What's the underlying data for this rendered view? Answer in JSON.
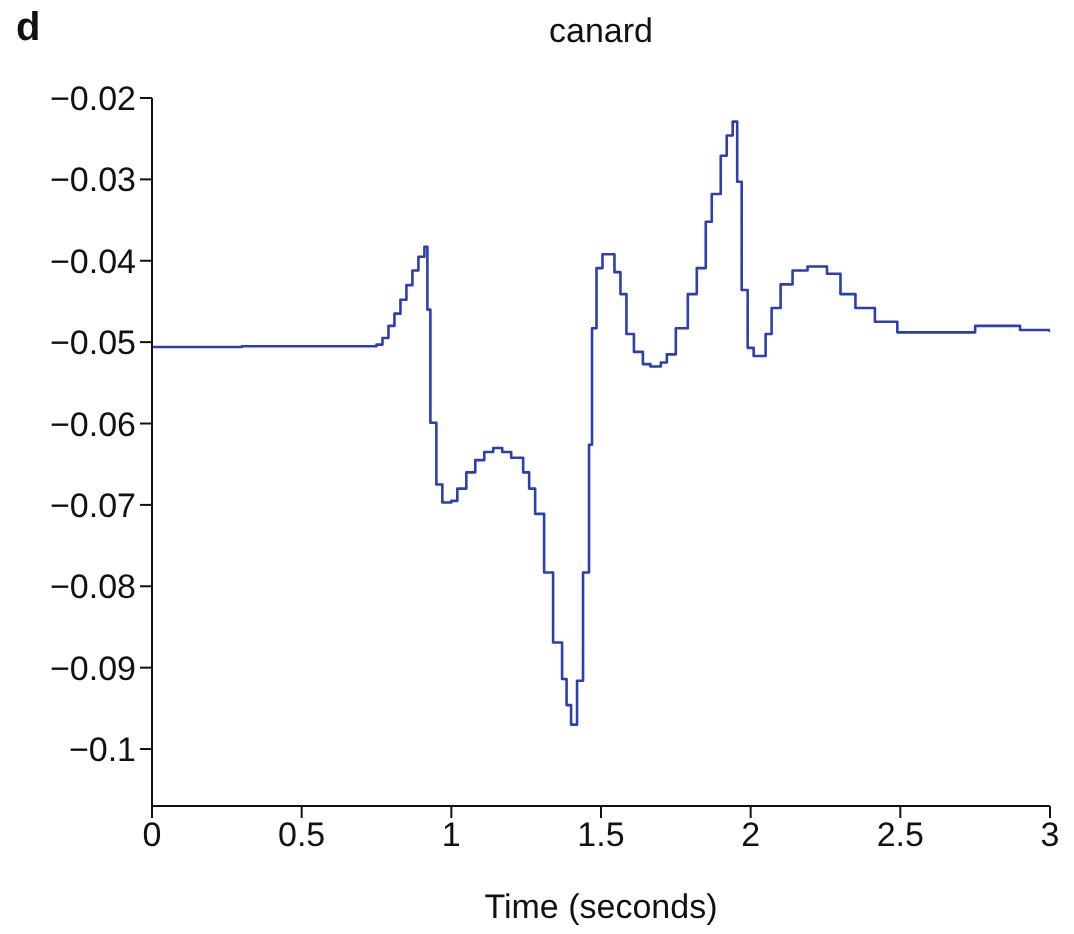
{
  "chart_data": {
    "type": "step",
    "title": "canard",
    "xlabel": "Time (seconds)",
    "annotations": [
      "d"
    ],
    "x": [
      0,
      0.3,
      0.75,
      0.77,
      0.79,
      0.81,
      0.83,
      0.85,
      0.87,
      0.89,
      0.91,
      0.92,
      0.93,
      0.95,
      0.97,
      1.0,
      1.02,
      1.05,
      1.08,
      1.11,
      1.14,
      1.17,
      1.2,
      1.24,
      1.26,
      1.28,
      1.31,
      1.34,
      1.37,
      1.385,
      1.4,
      1.42,
      1.44,
      1.46,
      1.47,
      1.485,
      1.505,
      1.545,
      1.565,
      1.585,
      1.61,
      1.64,
      1.665,
      1.7,
      1.72,
      1.75,
      1.79,
      1.82,
      1.85,
      1.87,
      1.9,
      1.92,
      1.94,
      1.955,
      1.97,
      1.99,
      2.01,
      2.05,
      2.07,
      2.1,
      2.14,
      2.19,
      2.255,
      2.3,
      2.35,
      2.415,
      2.49,
      2.655,
      2.75,
      2.9,
      3.0
    ],
    "series": [
      {
        "color": "#2b3fb0",
        "values": [
          -0.0506,
          -0.0505,
          -0.0503,
          -0.0495,
          -0.048,
          -0.0465,
          -0.0448,
          -0.043,
          -0.0412,
          -0.0395,
          -0.0383,
          -0.046,
          -0.0599,
          -0.0675,
          -0.0697,
          -0.0695,
          -0.068,
          -0.066,
          -0.0645,
          -0.0635,
          -0.063,
          -0.0635,
          -0.0642,
          -0.066,
          -0.068,
          -0.0711,
          -0.0783,
          -0.0869,
          -0.0914,
          -0.0946,
          -0.097,
          -0.0916,
          -0.0783,
          -0.0626,
          -0.0483,
          -0.0409,
          -0.0392,
          -0.0414,
          -0.0441,
          -0.049,
          -0.0512,
          -0.0527,
          -0.053,
          -0.0525,
          -0.0515,
          -0.0483,
          -0.0441,
          -0.0409,
          -0.0352,
          -0.0318,
          -0.0271,
          -0.0246,
          -0.0229,
          -0.0303,
          -0.0436,
          -0.0507,
          -0.0517,
          -0.049,
          -0.0458,
          -0.0429,
          -0.0412,
          -0.0407,
          -0.0416,
          -0.0441,
          -0.0458,
          -0.0475,
          -0.0488,
          -0.0488,
          -0.048,
          -0.0485,
          -0.0488
        ]
      }
    ],
    "xlim": [
      0,
      3
    ],
    "xticks": [
      0,
      0.5,
      1,
      1.5,
      2,
      2.5,
      3
    ],
    "ylim": [
      -0.107,
      -0.02
    ],
    "yticks": [
      {
        "value": -0.1,
        "label": "−0.1"
      },
      {
        "value": -0.09,
        "label": "−0.09"
      },
      {
        "value": -0.08,
        "label": "−0.08"
      },
      {
        "value": -0.07,
        "label": "−0.07"
      },
      {
        "value": -0.06,
        "label": "−0.06"
      },
      {
        "value": -0.05,
        "label": "−0.05"
      },
      {
        "value": -0.04,
        "label": "−0.04"
      },
      {
        "value": -0.03,
        "label": "−0.03"
      },
      {
        "value": -0.02,
        "label": "−0.02"
      }
    ],
    "grid": false,
    "legend": false,
    "marker": "none",
    "line_style": "solid"
  }
}
